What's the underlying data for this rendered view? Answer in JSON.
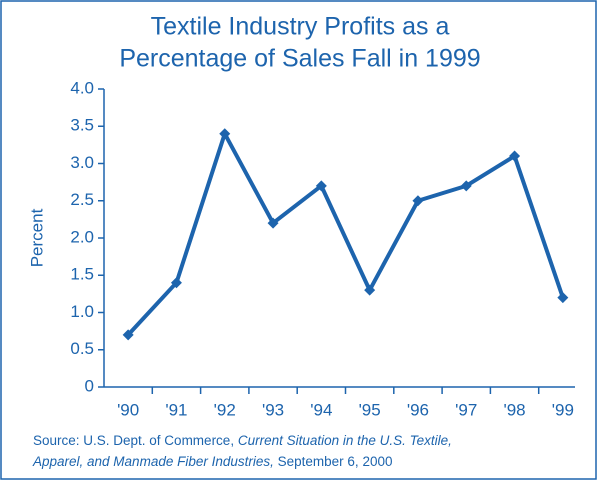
{
  "chart_data": {
    "type": "line",
    "title": [
      "Textile Industry Profits as a",
      "Percentage of Sales Fall in 1999"
    ],
    "y_label": "Percent",
    "categories": [
      "'90",
      "'91",
      "'92",
      "'93",
      "'94",
      "'95",
      "'96",
      "'97",
      "'98",
      "'99"
    ],
    "values": [
      0.7,
      1.4,
      3.4,
      2.2,
      2.7,
      1.3,
      2.5,
      2.7,
      3.1,
      1.2
    ],
    "color": "#1d64ad",
    "ylim": [
      0,
      4
    ],
    "yticks": [
      0,
      0.5,
      {
        "value": 1,
        "label": "1.0"
      },
      1.5,
      {
        "value": 2,
        "label": "2.0"
      },
      2.5,
      {
        "value": 3,
        "label": "3.0"
      },
      3.5,
      {
        "value": 4,
        "label": "4.0"
      }
    ],
    "grid": false,
    "source": [
      "Source: U.S. Dept. of Commerce, ",
      "Current Situation in the U.S. Textile,",
      "Apparel, and Manmade Fiber Industries,",
      " September 6, 2000"
    ]
  }
}
